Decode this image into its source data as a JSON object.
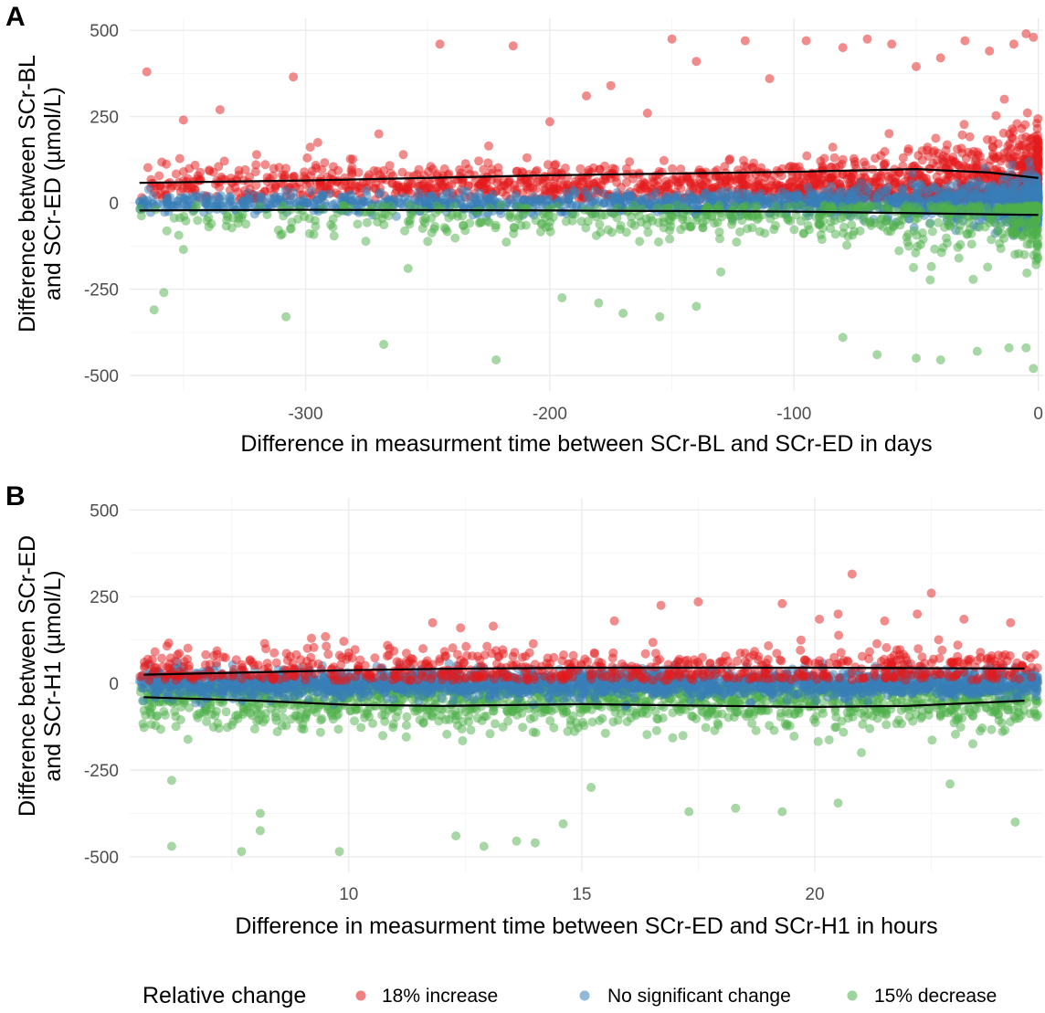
{
  "colors": {
    "increase": "#E41A1C",
    "nochange": "#377EB8",
    "decrease": "#4DAF4A",
    "smooth": "#000000",
    "grid_major": "#ebebeb",
    "grid_minor": "#f5f5f5"
  },
  "legend": {
    "title": "Relative change",
    "items": [
      {
        "key": "increase",
        "label": "18% increase"
      },
      {
        "key": "nochange",
        "label": "No significant change"
      },
      {
        "key": "decrease",
        "label": "15% decrease"
      }
    ]
  },
  "chart_data": [
    {
      "panel": "A",
      "type": "scatter",
      "xlabel": "Difference in measurment time between SCr-BL and SCr-ED in days",
      "ylabel": [
        "Difference between SCr-BL",
        "and SCr-ED (µmol/L)"
      ],
      "xlim": [
        -372,
        2
      ],
      "ylim": [
        -545,
        535
      ],
      "xticks": [
        -300,
        -200,
        -100,
        0
      ],
      "xtick_labels": [
        "-300",
        "-200",
        "-100",
        "0"
      ],
      "yticks": [
        -500,
        -250,
        0,
        250,
        500
      ],
      "ytick_labels": [
        "-500",
        "-250",
        "0",
        "250",
        "500"
      ],
      "grid": true,
      "series": [
        {
          "key": "increase",
          "n": 1700,
          "dist": "weighted",
          "body": {
            "mean": 55,
            "sd": 30
          },
          "tail": [
            [
              -365,
              380
            ],
            [
              -350,
              240
            ],
            [
              -335,
              270
            ],
            [
              -320,
              140
            ],
            [
              -305,
              365
            ],
            [
              -295,
              175
            ],
            [
              -270,
              200
            ],
            [
              -260,
              140
            ],
            [
              -245,
              460
            ],
            [
              -225,
              165
            ],
            [
              -215,
              455
            ],
            [
              -200,
              235
            ],
            [
              -185,
              310
            ],
            [
              -175,
              340
            ],
            [
              -160,
              260
            ],
            [
              -150,
              475
            ],
            [
              -140,
              410
            ],
            [
              -120,
              470
            ],
            [
              -110,
              360
            ],
            [
              -95,
              470
            ],
            [
              -80,
              450
            ],
            [
              -70,
              475
            ],
            [
              -60,
              460
            ],
            [
              -50,
              395
            ],
            [
              -40,
              420
            ],
            [
              -30,
              470
            ],
            [
              -20,
              440
            ],
            [
              -10,
              460
            ],
            [
              -5,
              490
            ],
            [
              -2,
              480
            ]
          ]
        },
        {
          "key": "nochange",
          "n": 1500,
          "dist": "weighted",
          "body": {
            "mean": 0,
            "sd": 15
          }
        },
        {
          "key": "decrease",
          "n": 650,
          "dist": "weighted",
          "body": {
            "mean": -40,
            "sd": 30
          },
          "tail": [
            [
              -362,
              -310
            ],
            [
              -358,
              -260
            ],
            [
              -350,
              -135
            ],
            [
              -308,
              -330
            ],
            [
              -268,
              -410
            ],
            [
              -258,
              -190
            ],
            [
              -222,
              -455
            ],
            [
              -195,
              -275
            ],
            [
              -180,
              -290
            ],
            [
              -170,
              -320
            ],
            [
              -155,
              -330
            ],
            [
              -140,
              -300
            ],
            [
              -130,
              -200
            ],
            [
              -80,
              -390
            ],
            [
              -66,
              -440
            ],
            [
              -50,
              -450
            ],
            [
              -40,
              -455
            ],
            [
              -25,
              -430
            ],
            [
              -12,
              -420
            ],
            [
              -5,
              -420
            ],
            [
              -2,
              -480
            ]
          ]
        }
      ],
      "smooth_upper": {
        "x": [
          -368,
          -300,
          -200,
          -150,
          -100,
          -50,
          -20,
          0
        ],
        "y": [
          58,
          65,
          80,
          85,
          90,
          98,
          88,
          72
        ]
      },
      "smooth_lower": {
        "x": [
          -368,
          -300,
          -200,
          -100,
          -50,
          -20,
          0
        ],
        "y": [
          -22,
          -20,
          -22,
          -25,
          -30,
          -33,
          -35
        ]
      }
    },
    {
      "panel": "B",
      "type": "scatter",
      "xlabel": "Difference in measurment time between SCr-ED and SCr-H1 in hours",
      "ylabel": [
        "Difference between SCr-ED",
        "and SCr-H1 (µmol/L)"
      ],
      "xlim": [
        5.3,
        24.9
      ],
      "ylim": [
        -545,
        535
      ],
      "xticks": [
        10,
        15,
        20
      ],
      "xtick_labels": [
        "10",
        "15",
        "20"
      ],
      "minor_xticks": [
        7.5,
        12.5,
        17.5,
        22.5
      ],
      "yticks": [
        -500,
        -250,
        0,
        250,
        500
      ],
      "ytick_labels": [
        "-500",
        "-250",
        "0",
        "250",
        "500"
      ],
      "grid": true,
      "series": [
        {
          "key": "decrease",
          "n": 1500,
          "dist": "uniform",
          "body": {
            "mean": -45,
            "sd": 45
          },
          "tail": [
            [
              6.2,
              -470
            ],
            [
              6.2,
              -280
            ],
            [
              7.7,
              -485
            ],
            [
              8.1,
              -375
            ],
            [
              8.1,
              -425
            ],
            [
              9.8,
              -485
            ],
            [
              12.3,
              -440
            ],
            [
              12.9,
              -470
            ],
            [
              13.6,
              -455
            ],
            [
              14.0,
              -460
            ],
            [
              14.6,
              -405
            ],
            [
              15.2,
              -300
            ],
            [
              17.3,
              -370
            ],
            [
              18.3,
              -360
            ],
            [
              19.3,
              -370
            ],
            [
              20.5,
              -345
            ],
            [
              21.0,
              -200
            ],
            [
              22.9,
              -290
            ],
            [
              24.3,
              -400
            ]
          ]
        },
        {
          "key": "nochange",
          "n": 2200,
          "dist": "uniform",
          "body": {
            "mean": 0,
            "sd": 20
          }
        },
        {
          "key": "increase",
          "n": 700,
          "dist": "uniform",
          "body": {
            "mean": 40,
            "sd": 35
          },
          "tail": [
            [
              9.2,
              130
            ],
            [
              9.5,
              135
            ],
            [
              11.8,
              175
            ],
            [
              12.4,
              160
            ],
            [
              13.1,
              165
            ],
            [
              15.7,
              180
            ],
            [
              16.7,
              225
            ],
            [
              17.5,
              235
            ],
            [
              19.3,
              230
            ],
            [
              20.1,
              185
            ],
            [
              20.5,
              200
            ],
            [
              20.8,
              315
            ],
            [
              21.5,
              180
            ],
            [
              22.2,
              200
            ],
            [
              22.5,
              260
            ],
            [
              23.2,
              185
            ],
            [
              24.2,
              175
            ]
          ]
        }
      ],
      "smooth_upper": {
        "x": [
          5.6,
          8,
          10,
          12,
          15,
          18,
          20,
          22,
          24.5
        ],
        "y": [
          25,
          32,
          38,
          42,
          45,
          45,
          45,
          44,
          43
        ]
      },
      "smooth_lower": {
        "x": [
          5.6,
          8,
          10,
          12,
          15,
          18,
          20,
          22,
          24.5
        ],
        "y": [
          -40,
          -50,
          -62,
          -65,
          -60,
          -65,
          -68,
          -65,
          -50
        ]
      }
    }
  ]
}
